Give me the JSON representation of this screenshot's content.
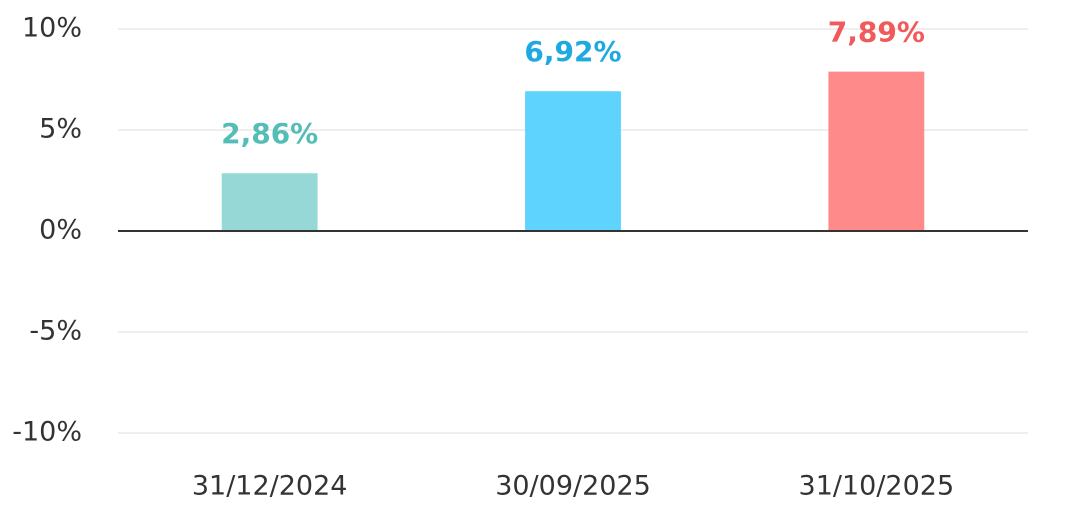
{
  "chart_data": {
    "type": "bar",
    "categories": [
      "31/12/2024",
      "30/09/2025",
      "31/10/2025"
    ],
    "values": [
      2.86,
      6.92,
      7.89
    ],
    "value_labels": [
      "2,86%",
      "6,92%",
      "7,89%"
    ],
    "colors": [
      "#96d8d6",
      "#5dd3fe",
      "#fe8a8a"
    ],
    "label_colors": [
      "#55bdb8",
      "#1ea9e1",
      "#f05a5a"
    ],
    "ylim": [
      -10,
      10
    ],
    "yticks": [
      {
        "value": -10,
        "label": "-10%"
      },
      {
        "value": -5,
        "label": "-5%"
      },
      {
        "value": 0,
        "label": "0%"
      },
      {
        "value": 5,
        "label": "5%"
      },
      {
        "value": 10,
        "label": "10%"
      }
    ],
    "grid": true
  }
}
